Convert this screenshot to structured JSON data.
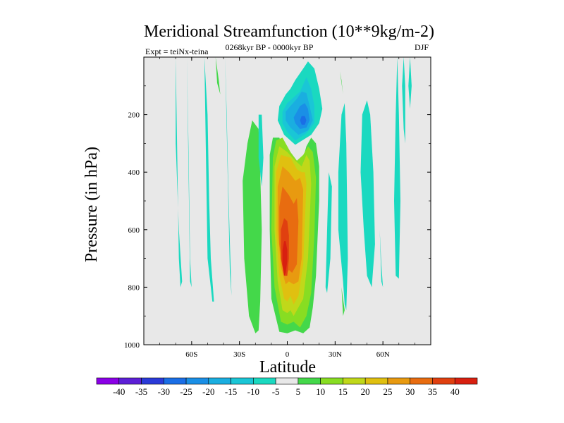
{
  "chart_data": {
    "type": "heatmap",
    "title": "Meridional Streamfunction (10**9kg/m-2)",
    "left_label": "Expt = teiNx-teina",
    "center_label": "0268kyr BP - 0000kyr BP",
    "right_label": "DJF",
    "xlabel": "Latitude",
    "ylabel": "Pressure (in hPa)",
    "xlim": [
      -90,
      90
    ],
    "ylim": [
      0,
      1000
    ],
    "y_inverted": true,
    "x_ticks": [
      {
        "value": -60,
        "label": "60S"
      },
      {
        "value": -30,
        "label": "30S"
      },
      {
        "value": 0,
        "label": "0"
      },
      {
        "value": 30,
        "label": "30N"
      },
      {
        "value": 60,
        "label": "60N"
      }
    ],
    "y_ticks": [
      {
        "value": 200,
        "label": "200"
      },
      {
        "value": 400,
        "label": "400"
      },
      {
        "value": 600,
        "label": "600"
      },
      {
        "value": 800,
        "label": "800"
      },
      {
        "value": 1000,
        "label": "1000"
      }
    ],
    "background_color": "#e8e8e8",
    "colorbar": {
      "labels": [
        "-40",
        "-35",
        "-30",
        "-25",
        "-20",
        "-15",
        "-10",
        "-5",
        "5",
        "10",
        "15",
        "20",
        "25",
        "30",
        "35",
        "40"
      ],
      "colors": [
        "#8a00e6",
        "#5c1fd6",
        "#2a3ad8",
        "#1a6ee6",
        "#1a8fe6",
        "#1aaee0",
        "#1ac6d6",
        "#1ad9c0",
        "#e8e8e8",
        "#44d84a",
        "#88dd22",
        "#c0d81a",
        "#e0c010",
        "#e89a10",
        "#e86c10",
        "#e04010",
        "#d82010"
      ]
    },
    "regions": [
      {
        "level": "-5",
        "lat": [
          -70,
          -70,
          -68,
          -66,
          -67,
          -68,
          -70
        ],
        "p": [
          0,
          300,
          600,
          780,
          800,
          700,
          0
        ]
      },
      {
        "level": "-5",
        "lat": [
          -63,
          -62,
          -61,
          -60,
          -61,
          -63
        ],
        "p": [
          0,
          300,
          700,
          800,
          780,
          0
        ]
      },
      {
        "level": "-5",
        "lat": [
          -52,
          -50,
          -49,
          -48,
          -46,
          -47,
          -48,
          -50,
          -52
        ],
        "p": [
          0,
          200,
          500,
          700,
          850,
          850,
          800,
          700,
          0
        ]
      },
      {
        "level": "5",
        "lat": [
          -45,
          -43,
          -42,
          -44,
          -45
        ],
        "p": [
          0,
          80,
          130,
          90,
          0
        ]
      },
      {
        "level": "-5",
        "lat": [
          -39,
          -38,
          -37,
          -36,
          -35,
          -36,
          -37,
          -39
        ],
        "p": [
          0,
          200,
          450,
          650,
          830,
          750,
          500,
          0
        ]
      },
      {
        "level": "5",
        "lat": [
          -25,
          -28,
          -27,
          -24,
          -20,
          -18,
          -17,
          -16,
          -17,
          -18,
          -22,
          -25
        ],
        "p": [
          300,
          430,
          700,
          900,
          960,
          950,
          850,
          600,
          400,
          250,
          220,
          300
        ]
      },
      {
        "level": "-5",
        "lat": [
          -18,
          -16,
          -15,
          -16,
          -18
        ],
        "p": [
          200,
          200,
          350,
          450,
          350
        ]
      },
      {
        "level": "5",
        "lat": [
          -9,
          -11,
          -11,
          -10,
          -5,
          0,
          5,
          10,
          14,
          16,
          18,
          20,
          20,
          18,
          15,
          12,
          10,
          5,
          0,
          -5,
          -9
        ],
        "p": [
          280,
          340,
          600,
          840,
          955,
          960,
          950,
          960,
          940,
          870,
          760,
          500,
          380,
          300,
          280,
          310,
          350,
          390,
          350,
          280,
          280
        ]
      },
      {
        "level": "10",
        "lat": [
          -7,
          -9,
          -10,
          -8,
          -4,
          0,
          4,
          8,
          12,
          15,
          17,
          18,
          16,
          13,
          10,
          6,
          2,
          -3,
          -7
        ],
        "p": [
          290,
          350,
          600,
          800,
          920,
          930,
          920,
          940,
          900,
          820,
          620,
          420,
          330,
          310,
          340,
          360,
          330,
          280,
          290
        ]
      },
      {
        "level": "15",
        "lat": [
          -5,
          -8,
          -8,
          -6,
          -3,
          0,
          2,
          4,
          6,
          10,
          13,
          15,
          14,
          12,
          9,
          5,
          0,
          -5
        ],
        "p": [
          310,
          380,
          600,
          780,
          880,
          890,
          880,
          900,
          880,
          840,
          700,
          440,
          360,
          340,
          380,
          360,
          330,
          310
        ]
      },
      {
        "level": "20",
        "lat": [
          -4,
          -7,
          -7,
          -5,
          -2,
          0,
          2,
          4,
          7,
          10,
          12,
          11,
          9,
          6,
          2,
          -4
        ],
        "p": [
          340,
          400,
          600,
          760,
          840,
          850,
          830,
          860,
          830,
          720,
          440,
          400,
          400,
          390,
          350,
          340
        ]
      },
      {
        "level": "25",
        "lat": [
          -3,
          -6,
          -6,
          -4,
          -1,
          1,
          4,
          7,
          9,
          10,
          8,
          5,
          1,
          -3
        ],
        "p": [
          380,
          450,
          600,
          730,
          790,
          780,
          790,
          780,
          700,
          460,
          420,
          430,
          400,
          380
        ]
      },
      {
        "level": "30",
        "lat": [
          -3,
          -5,
          -5,
          -3,
          -1,
          1,
          3,
          6,
          7,
          6,
          4,
          1,
          -3
        ],
        "p": [
          450,
          520,
          650,
          720,
          760,
          740,
          750,
          720,
          570,
          490,
          510,
          480,
          450
        ]
      },
      {
        "level": "35",
        "lat": [
          -2,
          -4,
          -4,
          -2,
          0,
          1,
          1,
          0,
          -2
        ],
        "p": [
          560,
          600,
          700,
          760,
          760,
          700,
          620,
          570,
          560
        ]
      },
      {
        "level": "40",
        "lat": [
          -2,
          -3,
          -3,
          -2,
          -1,
          0,
          0,
          -1,
          -2
        ],
        "p": [
          640,
          670,
          720,
          760,
          750,
          710,
          670,
          640,
          640
        ]
      },
      {
        "level": "-5",
        "lat": [
          -1,
          -5,
          -6,
          -2,
          5,
          15,
          20,
          22,
          20,
          17,
          13,
          10,
          5,
          2,
          -1
        ],
        "p": [
          130,
          170,
          220,
          270,
          305,
          270,
          230,
          180,
          110,
          40,
          15,
          40,
          80,
          110,
          130
        ]
      },
      {
        "level": "-10",
        "lat": [
          0,
          -3,
          -3,
          0,
          5,
          12,
          17,
          17,
          15,
          12,
          8,
          4,
          0
        ],
        "p": [
          160,
          190,
          230,
          260,
          290,
          265,
          230,
          170,
          110,
          70,
          120,
          140,
          160
        ]
      },
      {
        "level": "-15",
        "lat": [
          2,
          -1,
          -1,
          2,
          7,
          13,
          16,
          14,
          12,
          9,
          6,
          2
        ],
        "p": [
          170,
          190,
          220,
          245,
          270,
          255,
          220,
          170,
          125,
          120,
          145,
          170
        ]
      },
      {
        "level": "-20",
        "lat": [
          6,
          4,
          5,
          8,
          12,
          14,
          13,
          11,
          8,
          6
        ],
        "p": [
          190,
          210,
          230,
          250,
          245,
          220,
          180,
          160,
          170,
          190
        ]
      },
      {
        "level": "-25",
        "lat": [
          9,
          8,
          9,
          11,
          12,
          11,
          9
        ],
        "p": [
          205,
          220,
          235,
          235,
          220,
          205,
          205
        ]
      },
      {
        "level": "-5",
        "lat": [
          26,
          25,
          24,
          25,
          27,
          28,
          26
        ],
        "p": [
          400,
          600,
          800,
          820,
          700,
          450,
          400
        ]
      },
      {
        "level": "-5",
        "lat": [
          36,
          34,
          32,
          32,
          35,
          36,
          37,
          38,
          37,
          36
        ],
        "p": [
          160,
          200,
          400,
          600,
          780,
          860,
          880,
          700,
          300,
          160
        ]
      },
      {
        "level": "5",
        "lat": [
          33,
          34,
          35,
          34,
          33
        ],
        "p": [
          50,
          80,
          130,
          90,
          50
        ]
      },
      {
        "level": "5",
        "lat": [
          34,
          35,
          36,
          35,
          34
        ],
        "p": [
          800,
          840,
          880,
          900,
          800
        ]
      },
      {
        "level": "-5",
        "lat": [
          50,
          47,
          46,
          48,
          50,
          53,
          55,
          54,
          52,
          50
        ],
        "p": [
          150,
          200,
          400,
          600,
          760,
          800,
          650,
          400,
          200,
          150
        ]
      },
      {
        "level": "-5",
        "lat": [
          58,
          59,
          60,
          59,
          58
        ],
        "p": [
          600,
          720,
          800,
          780,
          600
        ]
      },
      {
        "level": "-5",
        "lat": [
          69,
          68,
          67,
          68,
          70,
          71,
          70,
          69
        ],
        "p": [
          0,
          200,
          500,
          760,
          770,
          500,
          200,
          0
        ]
      },
      {
        "level": "-5",
        "lat": [
          73,
          72,
          73,
          74,
          74,
          73
        ],
        "p": [
          0,
          100,
          250,
          300,
          100,
          0
        ]
      },
      {
        "level": "-5",
        "lat": [
          77,
          76,
          77,
          78,
          77
        ],
        "p": [
          0,
          100,
          180,
          100,
          0
        ]
      }
    ]
  }
}
